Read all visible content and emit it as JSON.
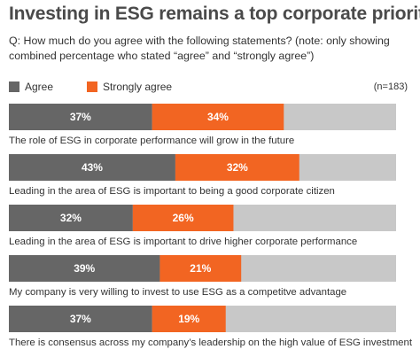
{
  "title": "Investing in ESG remains a top corporate priority",
  "question": "Q: How much do you agree with the following statements? (note: only showing combined percentage who stated “agree” and “strongly agree”)",
  "n_label": "(n=183)",
  "colors": {
    "agree": "#666666",
    "strongly_agree": "#f26522",
    "remainder": "#c8c8c8"
  },
  "legend": [
    {
      "label": "Agree",
      "color": "#666666"
    },
    {
      "label": "Strongly agree",
      "color": "#f26522"
    }
  ],
  "chart_data": {
    "type": "bar",
    "orientation": "horizontal",
    "stacked": true,
    "xlim": [
      0,
      100
    ],
    "categories": [
      "The role of ESG in corporate performance will grow in the future",
      "Leading in the area of ESG is important to being a good corporate citizen",
      "Leading in the area of ESG is important to drive higher corporate performance",
      "My company is very willing to invest to use ESG as a competitve advantage",
      "There is consensus across my company’s leadership on the high value of ESG investment"
    ],
    "series": [
      {
        "name": "Agree",
        "values": [
          37,
          43,
          32,
          39,
          37
        ],
        "labels": [
          "37%",
          "43%",
          "32%",
          "39%",
          "37%"
        ]
      },
      {
        "name": "Strongly agree",
        "values": [
          34,
          32,
          26,
          21,
          19
        ],
        "labels": [
          "34%",
          "32%",
          "26%",
          "21%",
          "19%"
        ]
      }
    ]
  }
}
